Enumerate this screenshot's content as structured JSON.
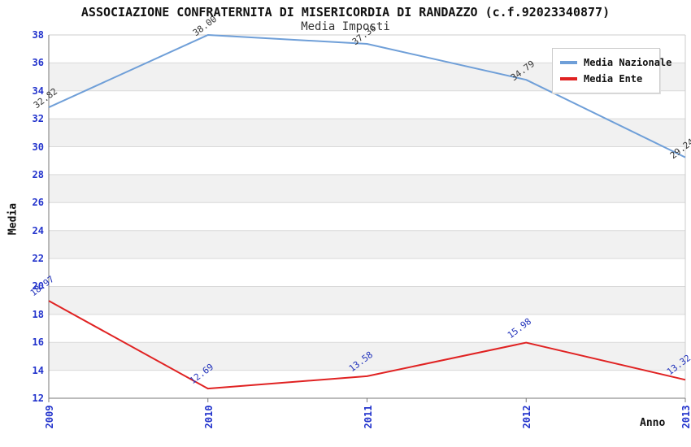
{
  "chart_data": {
    "type": "line",
    "title": "ASSOCIAZIONE CONFRATERNITA DI MISERICORDIA DI RANDAZZO (c.f.92023340877)",
    "subtitle": "Media Imposti",
    "xlabel": "Anno",
    "ylabel": "Media",
    "categories": [
      "2009",
      "2010",
      "2011",
      "2012",
      "2013"
    ],
    "series": [
      {
        "name": "Media Nazionale",
        "color": "#6f9fd8",
        "label_color": "#333333",
        "values": [
          32.82,
          38.0,
          37.36,
          34.79,
          29.24
        ]
      },
      {
        "name": "Media Ente",
        "color": "#e02222",
        "label_color": "#2233bb",
        "values": [
          18.97,
          12.69,
          13.58,
          15.98,
          13.32
        ]
      }
    ],
    "ylim": [
      12,
      38
    ],
    "ytick_step": 2,
    "grid": true,
    "legend_position": "top-right",
    "style": {
      "tick_color": "#2233cc",
      "band_color": "#f1f1f1",
      "grid_color": "#d9d9d9",
      "frame_color": "#cccccc",
      "axis_color": "#777777"
    }
  }
}
